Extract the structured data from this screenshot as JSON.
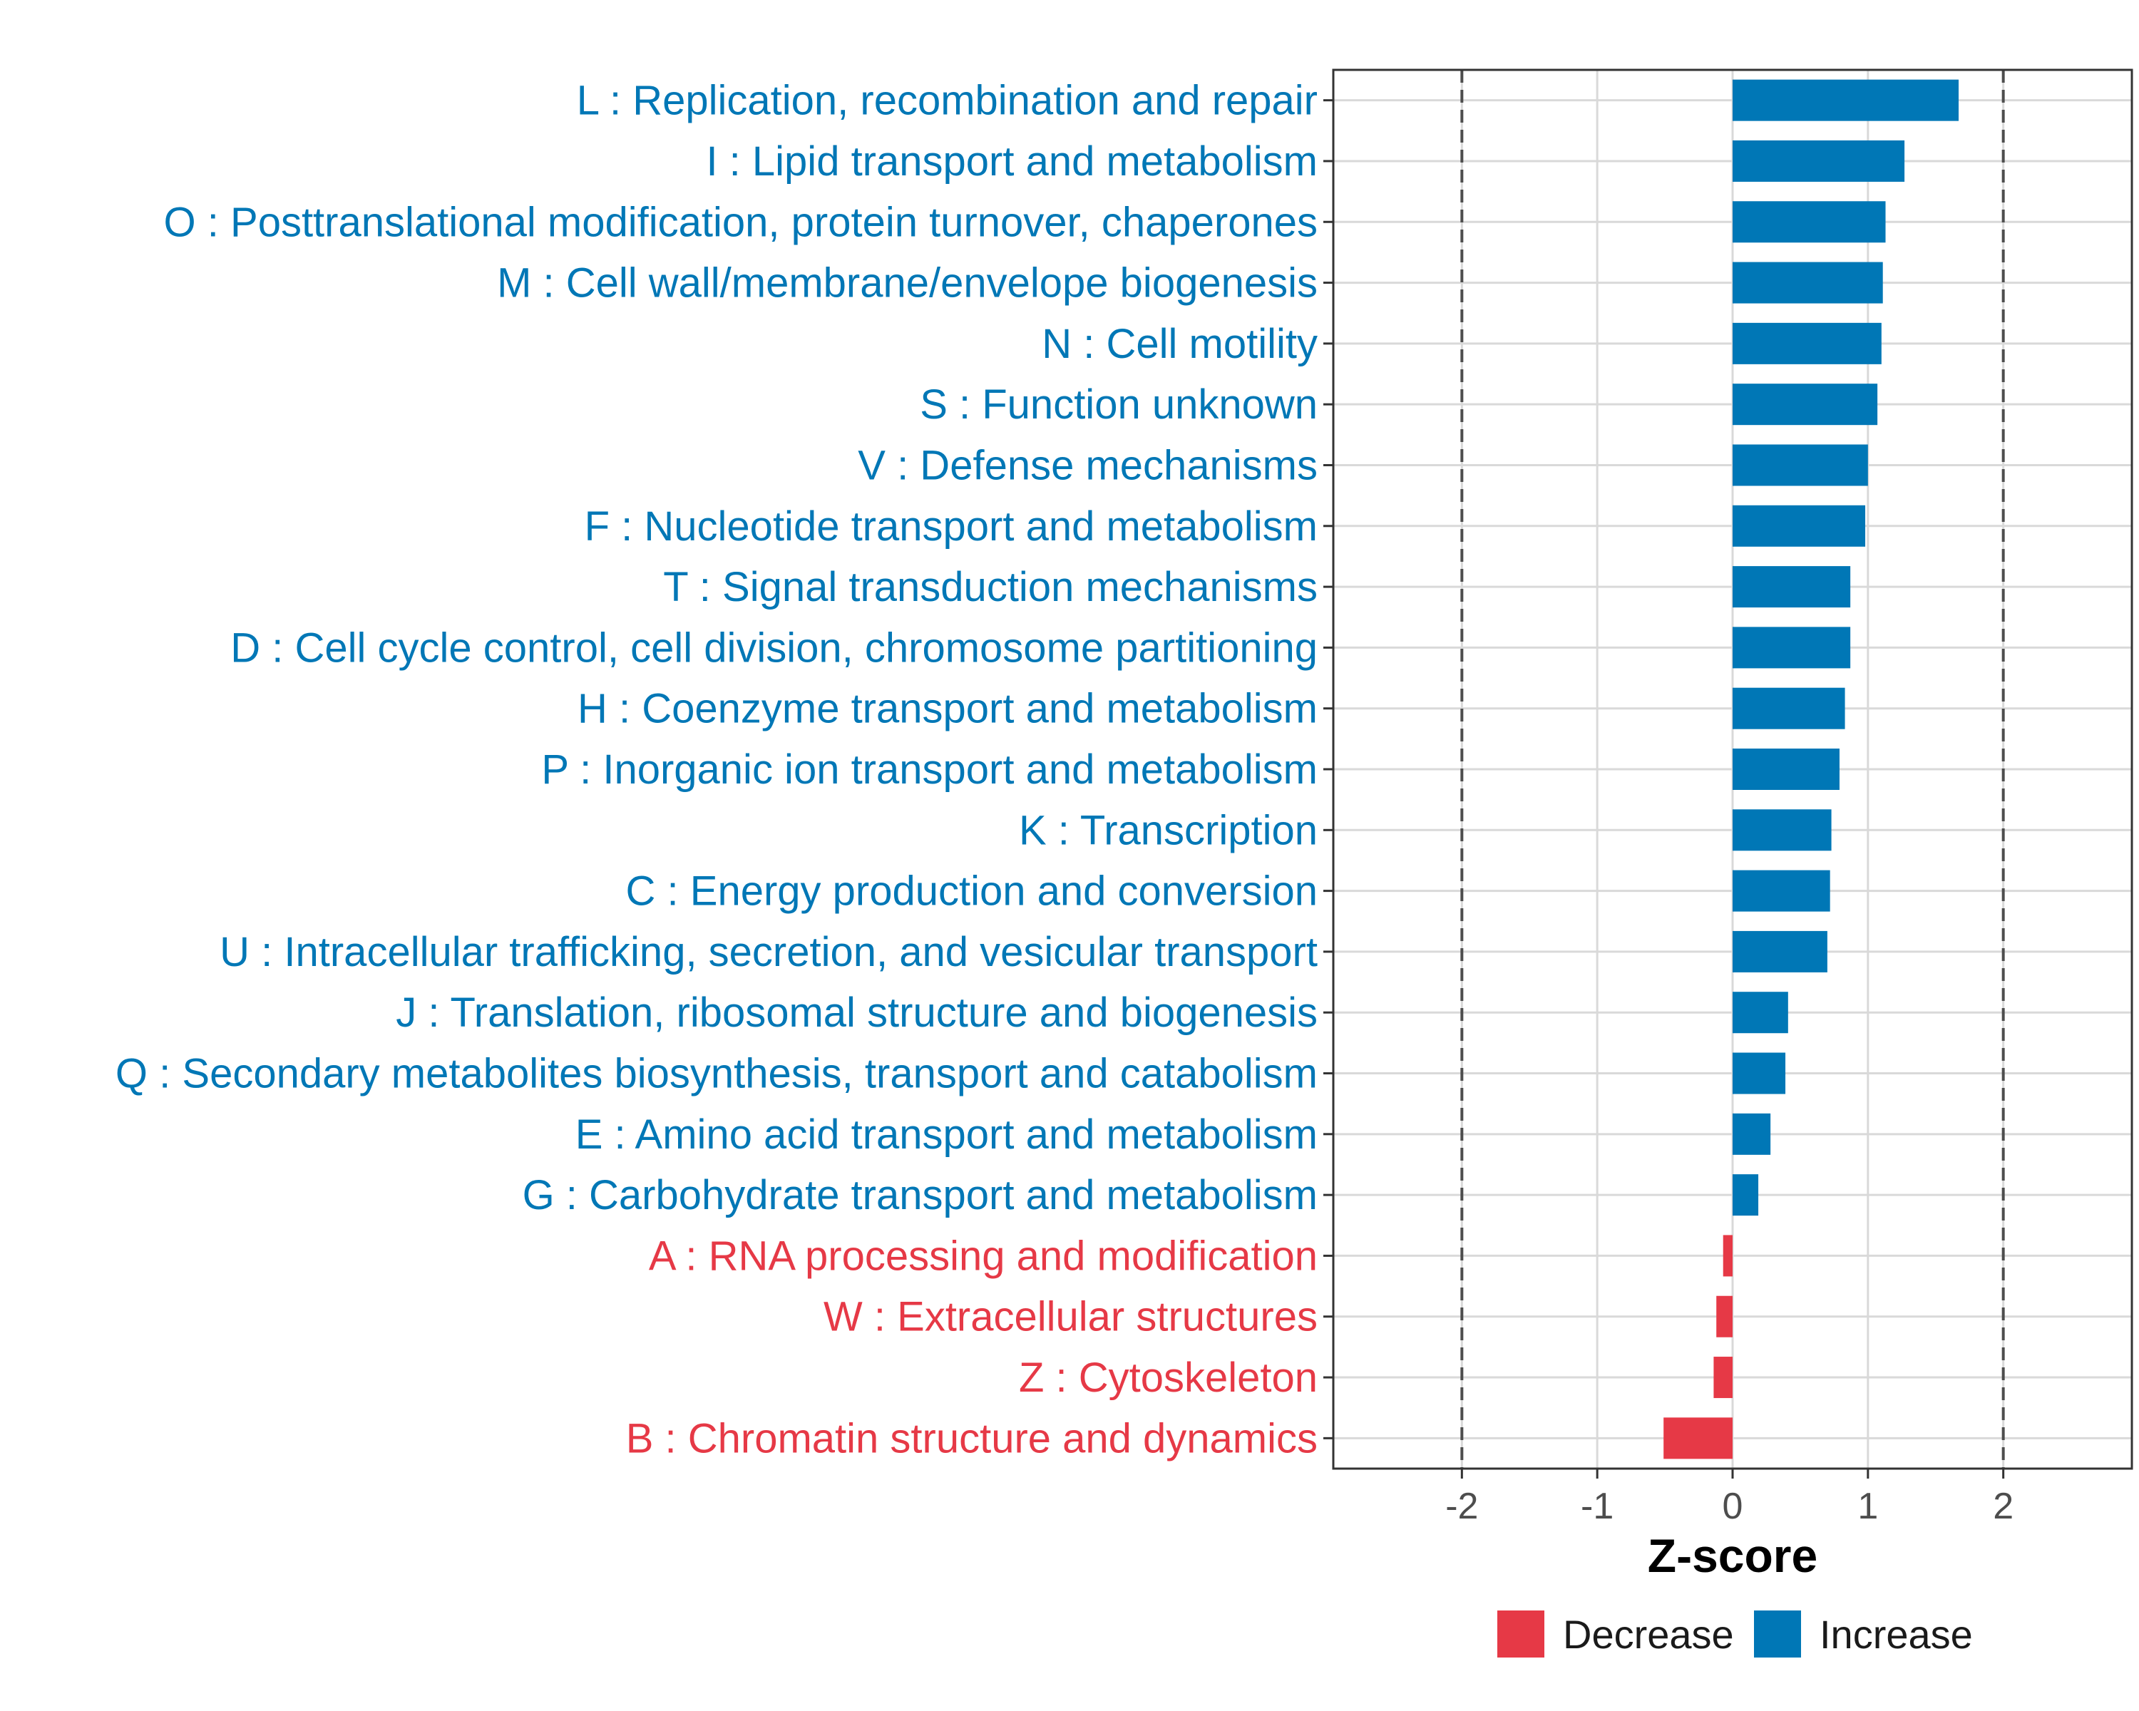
{
  "chart_data": {
    "type": "bar",
    "orientation": "horizontal",
    "title": "",
    "xlabel": "Z-score",
    "ylabel": "",
    "xlim": [
      -2.95,
      2.95
    ],
    "xticks": [
      -2,
      -1,
      0,
      1,
      2
    ],
    "xtick_labels": [
      "-2",
      "-1",
      "0",
      "1",
      "2"
    ],
    "reference_lines": [
      -2,
      2
    ],
    "grid": true,
    "legend_position": "bottom",
    "colors": {
      "Increase": "#0077b6",
      "Decrease": "#e63946"
    },
    "legend": [
      {
        "label": "Decrease",
        "color": "#e63946"
      },
      {
        "label": "Increase",
        "color": "#0077b6"
      }
    ],
    "categories": [
      "L : Replication, recombination and repair",
      "I : Lipid transport and metabolism",
      "O : Posttranslational modification, protein turnover, chaperones",
      "M : Cell wall/membrane/envelope biogenesis",
      "N : Cell motility",
      "S : Function unknown",
      "V : Defense mechanisms",
      "F : Nucleotide transport and metabolism",
      "T : Signal transduction mechanisms",
      "D : Cell cycle control, cell division, chromosome partitioning",
      "H : Coenzyme transport and metabolism",
      "P : Inorganic ion transport and metabolism",
      "K : Transcription",
      "C : Energy production and conversion",
      "U : Intracellular trafficking, secretion, and vesicular transport",
      "J : Translation, ribosomal structure and biogenesis",
      "Q : Secondary metabolites biosynthesis, transport and catabolism",
      "E : Amino acid transport and metabolism",
      "G : Carbohydrate transport and metabolism",
      "A : RNA processing and modification",
      "W : Extracellular structures",
      "Z : Cytoskeleton",
      "B : Chromatin structure and dynamics"
    ],
    "values": [
      1.67,
      1.27,
      1.13,
      1.11,
      1.1,
      1.07,
      1.0,
      0.98,
      0.87,
      0.87,
      0.83,
      0.79,
      0.73,
      0.72,
      0.7,
      0.41,
      0.39,
      0.28,
      0.19,
      -0.07,
      -0.12,
      -0.14,
      -0.51
    ],
    "direction": [
      "Increase",
      "Increase",
      "Increase",
      "Increase",
      "Increase",
      "Increase",
      "Increase",
      "Increase",
      "Increase",
      "Increase",
      "Increase",
      "Increase",
      "Increase",
      "Increase",
      "Increase",
      "Increase",
      "Increase",
      "Increase",
      "Increase",
      "Decrease",
      "Decrease",
      "Decrease",
      "Decrease"
    ]
  }
}
